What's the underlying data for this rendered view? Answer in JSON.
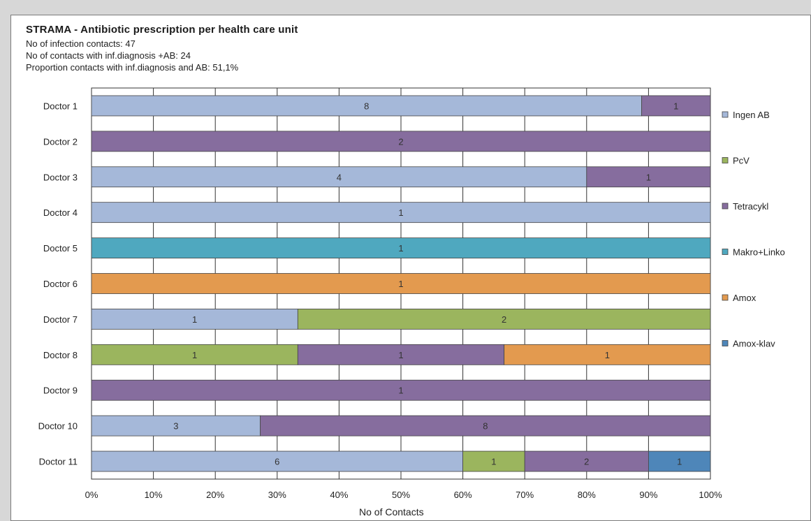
{
  "chart_data": {
    "type": "bar",
    "orientation": "horizontal",
    "stacked": "percent",
    "title": "STRAMA - Antibiotic prescription per health care unit",
    "info_lines": [
      "No of infection contacts: 47",
      "No of contacts with inf.diagnosis +AB: 24",
      "Proportion contacts with inf.diagnosis and AB: 51,1%"
    ],
    "xlabel": "No of Contacts",
    "xlim": [
      0,
      100
    ],
    "xticks": [
      "0%",
      "10%",
      "20%",
      "30%",
      "40%",
      "50%",
      "60%",
      "70%",
      "80%",
      "90%",
      "100%"
    ],
    "grid": true,
    "legend_position": "right",
    "categories": [
      "Doctor 1",
      "Doctor 2",
      "Doctor 3",
      "Doctor 4",
      "Doctor 5",
      "Doctor 6",
      "Doctor 7",
      "Doctor 8",
      "Doctor 9",
      "Doctor 10",
      "Doctor 11"
    ],
    "series": [
      {
        "name": "Ingen AB",
        "color": "#a5b8d9",
        "values": [
          8,
          0,
          4,
          1,
          0,
          0,
          1,
          0,
          0,
          3,
          6
        ]
      },
      {
        "name": "PcV",
        "color": "#9bb55e",
        "values": [
          0,
          0,
          0,
          0,
          0,
          0,
          2,
          1,
          0,
          0,
          1
        ]
      },
      {
        "name": "Tetracykl",
        "color": "#866d9e",
        "values": [
          1,
          2,
          1,
          0,
          0,
          0,
          0,
          1,
          1,
          8,
          2
        ]
      },
      {
        "name": "Makro+Linko",
        "color": "#4fa8bf",
        "values": [
          0,
          0,
          0,
          0,
          1,
          0,
          0,
          0,
          0,
          0,
          0
        ]
      },
      {
        "name": "Amox",
        "color": "#e39a4f",
        "values": [
          0,
          0,
          0,
          0,
          0,
          1,
          0,
          1,
          0,
          0,
          0
        ]
      },
      {
        "name": "Amox-klav",
        "color": "#4e86b9",
        "values": [
          0,
          0,
          0,
          0,
          0,
          0,
          0,
          0,
          0,
          0,
          1
        ]
      }
    ]
  }
}
